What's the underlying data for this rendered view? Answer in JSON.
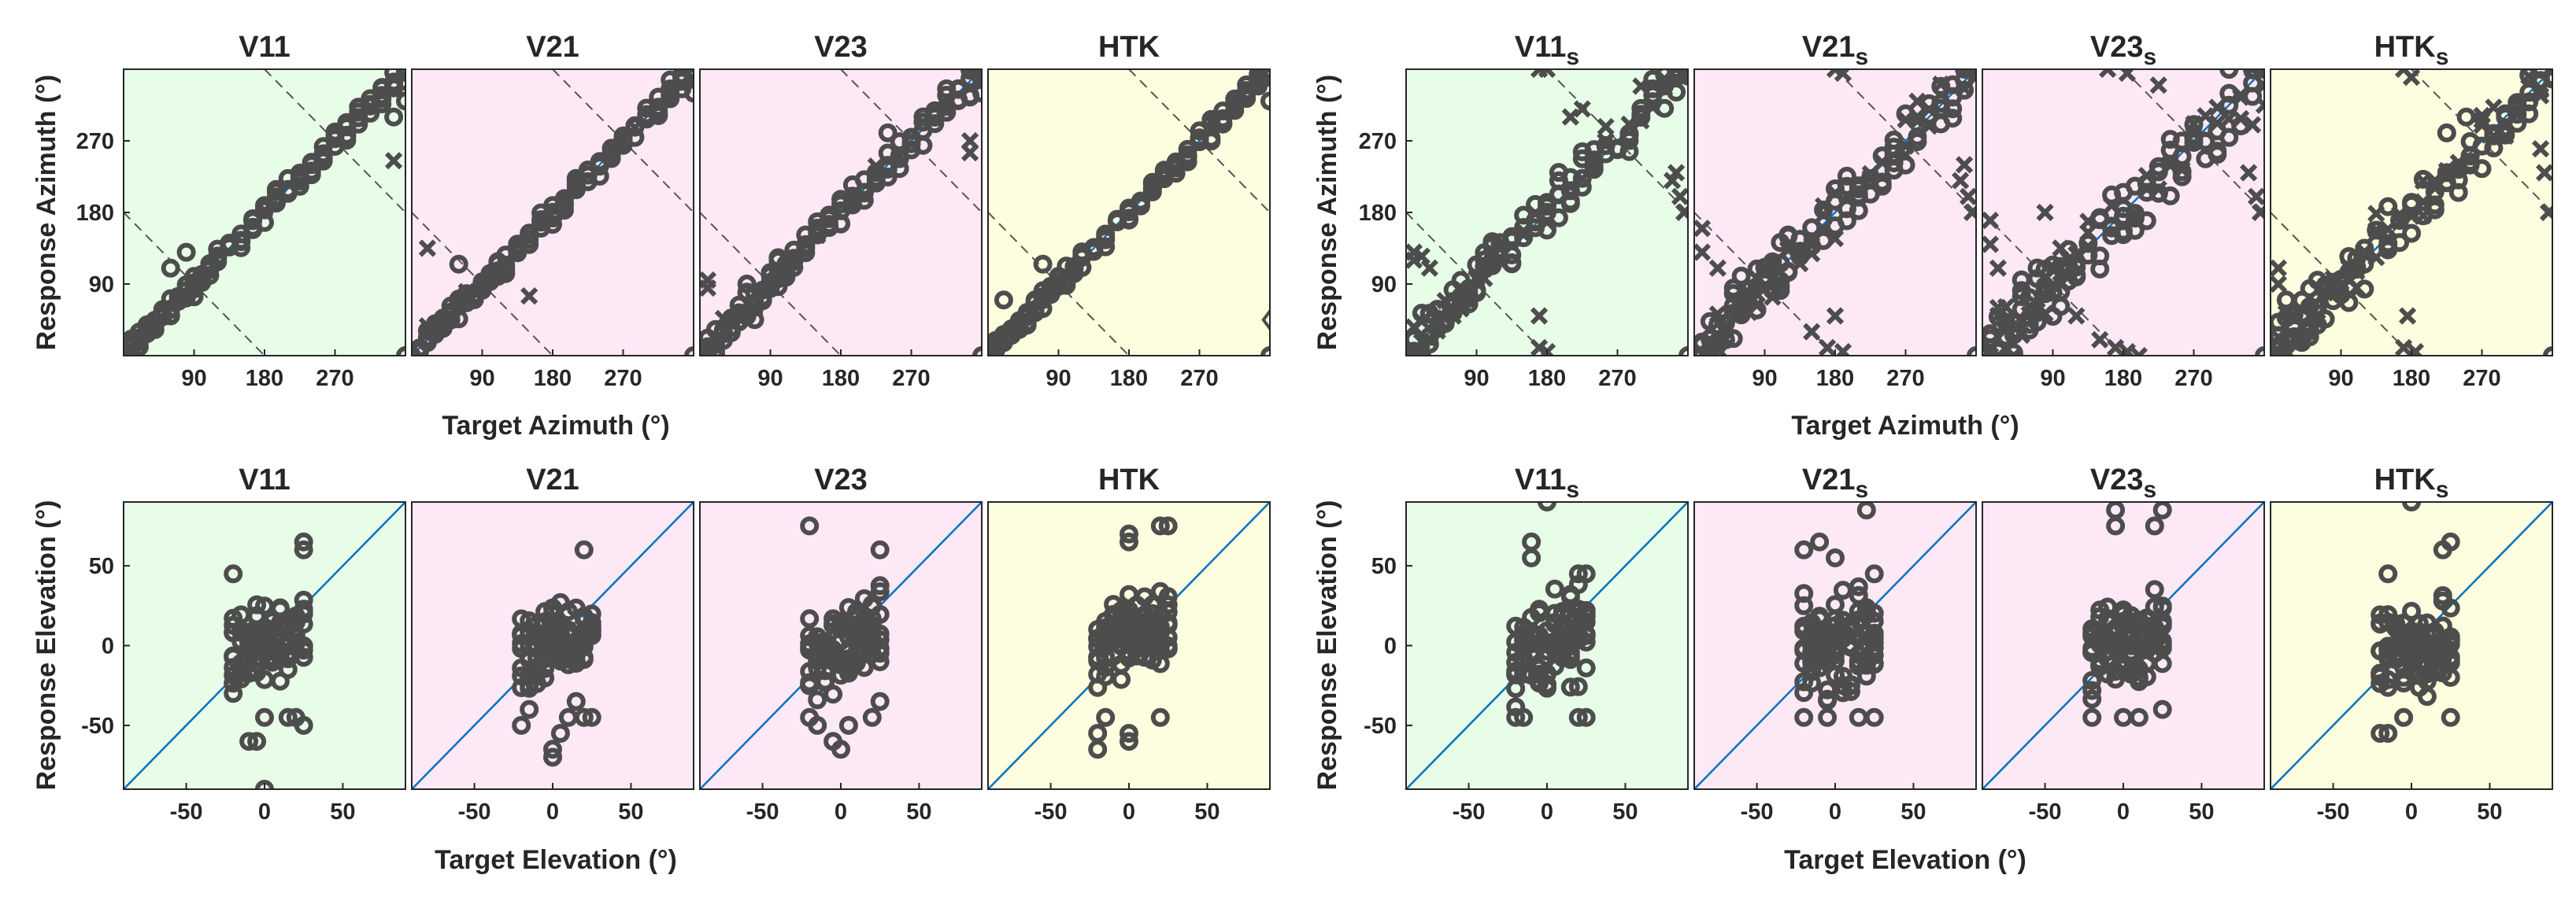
{
  "figure": {
    "panels": [
      {
        "title": "V11",
        "sub": "",
        "bg": "#e8fde8"
      },
      {
        "title": "V21",
        "sub": "",
        "bg": "#fde8f6"
      },
      {
        "title": "V23",
        "sub": "",
        "bg": "#fde8f6"
      },
      {
        "title": "HTK",
        "sub": "",
        "bg": "#fdfde0"
      },
      {
        "title": "V11",
        "sub": "s",
        "bg": "#e8fde8"
      },
      {
        "title": "V21",
        "sub": "s",
        "bg": "#fde8f6"
      },
      {
        "title": "V23",
        "sub": "s",
        "bg": "#fde8f6"
      },
      {
        "title": "HTK",
        "sub": "s",
        "bg": "#fdfde0"
      }
    ],
    "azimuth": {
      "xlabel": "Target Azimuth (°)",
      "ylabel": "Response Azimuth (°)",
      "range": [
        0,
        360
      ],
      "ticks": [
        90,
        180,
        270
      ],
      "tick_labels": [
        "90",
        "180",
        "270"
      ]
    },
    "elevation": {
      "xlabel": "Target Elevation (°)",
      "ylabel": "Response Elevation (°)",
      "range": [
        -90,
        90
      ],
      "ticks": [
        -50,
        0,
        50
      ],
      "tick_labels": [
        "-50",
        "0",
        "50"
      ]
    },
    "colors": {
      "marker": "#4d4d4d",
      "diagonal": "#0072bd",
      "wrap_lines": "#555555",
      "frame": "#262626"
    },
    "markers": {
      "circle": "o",
      "cross": "x",
      "diamond": "◇"
    }
  },
  "chart_data": [
    {
      "type": "scatter",
      "title": "V11",
      "kind": "azimuth",
      "xlabel": "Target Azimuth (°)",
      "ylabel": "Response Azimuth (°)",
      "xlim": [
        0,
        360
      ],
      "ylim": [
        0,
        360
      ],
      "targets": [
        10,
        20,
        30,
        40,
        50,
        60,
        70,
        80,
        90,
        100,
        110,
        120,
        135,
        150,
        165,
        180,
        195,
        210,
        225,
        240,
        255,
        270,
        285,
        300,
        315,
        330,
        345,
        360
      ],
      "spread": 10,
      "cross_rate": 0.02,
      "diamonds": [],
      "zeros": [
        360
      ],
      "extras": [
        [
          360,
          345
        ],
        [
          360,
          320
        ],
        [
          345,
          245
        ],
        [
          345,
          300
        ],
        [
          80,
          130
        ],
        [
          60,
          110
        ]
      ]
    },
    {
      "type": "scatter",
      "title": "V21",
      "kind": "azimuth",
      "xlabel": "Target Azimuth (°)",
      "ylabel": "Response Azimuth (°)",
      "xlim": [
        0,
        360
      ],
      "ylim": [
        0,
        360
      ],
      "targets": [
        10,
        20,
        30,
        40,
        50,
        60,
        70,
        80,
        90,
        100,
        110,
        120,
        135,
        150,
        165,
        180,
        195,
        210,
        225,
        240,
        255,
        270,
        285,
        300,
        315,
        330,
        345,
        360
      ],
      "spread": 9,
      "cross_rate": 0.02,
      "diamonds": [],
      "zeros": [
        360
      ],
      "extras": [
        [
          360,
          350
        ],
        [
          360,
          330
        ],
        [
          150,
          75
        ],
        [
          60,
          115
        ],
        [
          20,
          135
        ]
      ]
    },
    {
      "type": "scatter",
      "title": "V23",
      "kind": "azimuth",
      "xlabel": "Target Azimuth (°)",
      "ylabel": "Response Azimuth (°)",
      "xlim": [
        0,
        360
      ],
      "ylim": [
        0,
        360
      ],
      "targets": [
        10,
        20,
        30,
        40,
        50,
        60,
        70,
        80,
        90,
        100,
        110,
        120,
        135,
        150,
        165,
        180,
        195,
        210,
        225,
        240,
        255,
        270,
        285,
        300,
        315,
        330,
        345,
        360
      ],
      "spread": 14,
      "cross_rate": 0.03,
      "diamonds": [],
      "zeros": [
        360
      ],
      "extras": [
        [
          360,
          350
        ],
        [
          360,
          330
        ],
        [
          10,
          95
        ],
        [
          10,
          85
        ],
        [
          345,
          255
        ],
        [
          345,
          270
        ],
        [
          240,
          280
        ],
        [
          60,
          90
        ]
      ]
    },
    {
      "type": "scatter",
      "title": "HTK",
      "kind": "azimuth",
      "xlabel": "Target Azimuth (°)",
      "ylabel": "Response Azimuth (°)",
      "xlim": [
        0,
        360
      ],
      "ylim": [
        0,
        360
      ],
      "targets": [
        10,
        20,
        30,
        40,
        50,
        60,
        70,
        80,
        90,
        100,
        110,
        120,
        135,
        150,
        165,
        180,
        195,
        210,
        225,
        240,
        255,
        270,
        285,
        300,
        315,
        330,
        345,
        360
      ],
      "spread": 9,
      "cross_rate": 0.02,
      "diamonds": [
        [
          360,
          45
        ]
      ],
      "zeros": [
        360
      ],
      "extras": [
        [
          360,
          350
        ],
        [
          360,
          320
        ],
        [
          20,
          70
        ],
        [
          70,
          115
        ]
      ]
    },
    {
      "type": "scatter",
      "title": "V11s",
      "kind": "azimuth",
      "xlabel": "Target Azimuth (°)",
      "ylabel": "Response Azimuth (°)",
      "xlim": [
        0,
        360
      ],
      "ylim": [
        0,
        360
      ],
      "targets": [
        10,
        20,
        30,
        40,
        50,
        60,
        70,
        80,
        90,
        100,
        110,
        120,
        135,
        150,
        165,
        180,
        195,
        210,
        225,
        240,
        255,
        270,
        285,
        300,
        315,
        330,
        345,
        360
      ],
      "spread": 22,
      "cross_rate": 0.25,
      "diamonds": [],
      "zeros": [
        360
      ],
      "extras": [
        [
          170,
          360
        ],
        [
          180,
          360
        ],
        [
          170,
          10
        ],
        [
          180,
          5
        ],
        [
          170,
          50
        ],
        [
          355,
          180
        ],
        [
          350,
          200
        ],
        [
          340,
          220
        ],
        [
          345,
          230
        ],
        [
          10,
          130
        ],
        [
          20,
          125
        ],
        [
          30,
          110
        ],
        [
          210,
          300
        ],
        [
          225,
          310
        ],
        [
          10,
          120
        ]
      ]
    },
    {
      "type": "scatter",
      "title": "V21s",
      "kind": "azimuth",
      "xlabel": "Target Azimuth (°)",
      "ylabel": "Response Azimuth (°)",
      "xlim": [
        0,
        360
      ],
      "ylim": [
        0,
        360
      ],
      "targets": [
        10,
        20,
        30,
        40,
        50,
        60,
        70,
        80,
        90,
        100,
        110,
        120,
        135,
        150,
        165,
        180,
        195,
        210,
        225,
        240,
        255,
        270,
        285,
        300,
        315,
        330,
        345,
        360
      ],
      "spread": 24,
      "cross_rate": 0.3,
      "diamonds": [],
      "zeros": [
        360
      ],
      "extras": [
        [
          180,
          360
        ],
        [
          190,
          355
        ],
        [
          170,
          10
        ],
        [
          190,
          5
        ],
        [
          180,
          50
        ],
        [
          150,
          30
        ],
        [
          355,
          180
        ],
        [
          350,
          200
        ],
        [
          340,
          220
        ],
        [
          345,
          240
        ],
        [
          10,
          160
        ],
        [
          10,
          130
        ],
        [
          30,
          110
        ],
        [
          60,
          100
        ],
        [
          120,
          150
        ]
      ]
    },
    {
      "type": "scatter",
      "title": "V23s",
      "kind": "azimuth",
      "xlabel": "Target Azimuth (°)",
      "ylabel": "Response Azimuth (°)",
      "xlim": [
        0,
        360
      ],
      "ylim": [
        0,
        360
      ],
      "targets": [
        10,
        20,
        30,
        40,
        50,
        60,
        70,
        80,
        90,
        100,
        110,
        120,
        135,
        150,
        165,
        180,
        195,
        210,
        225,
        240,
        255,
        270,
        285,
        300,
        315,
        330,
        345,
        360
      ],
      "spread": 32,
      "cross_rate": 0.35,
      "diamonds": [],
      "zeros": [
        360
      ],
      "extras": [
        [
          160,
          360
        ],
        [
          185,
          355
        ],
        [
          170,
          10
        ],
        [
          185,
          5
        ],
        [
          150,
          20
        ],
        [
          200,
          0
        ],
        [
          355,
          180
        ],
        [
          350,
          200
        ],
        [
          340,
          230
        ],
        [
          10,
          170
        ],
        [
          10,
          140
        ],
        [
          20,
          110
        ],
        [
          80,
          180
        ],
        [
          120,
          50
        ],
        [
          225,
          340
        ]
      ]
    },
    {
      "type": "scatter",
      "title": "HTKs",
      "kind": "azimuth",
      "xlabel": "Target Azimuth (°)",
      "ylabel": "Response Azimuth (°)",
      "xlim": [
        0,
        360
      ],
      "ylim": [
        0,
        360
      ],
      "targets": [
        10,
        20,
        30,
        40,
        50,
        60,
        70,
        80,
        90,
        100,
        110,
        120,
        135,
        150,
        165,
        180,
        195,
        210,
        225,
        240,
        255,
        270,
        285,
        300,
        315,
        330,
        345,
        360
      ],
      "spread": 25,
      "cross_rate": 0.3,
      "diamonds": [],
      "zeros": [
        360
      ],
      "extras": [
        [
          170,
          360
        ],
        [
          180,
          350
        ],
        [
          170,
          10
        ],
        [
          185,
          5
        ],
        [
          175,
          50
        ],
        [
          355,
          180
        ],
        [
          350,
          230
        ],
        [
          345,
          260
        ],
        [
          10,
          110
        ],
        [
          10,
          90
        ],
        [
          20,
          70
        ],
        [
          60,
          60
        ],
        [
          250,
          300
        ],
        [
          225,
          280
        ]
      ]
    },
    {
      "type": "scatter",
      "title": "V11",
      "kind": "elevation",
      "xlabel": "Target Elevation (°)",
      "ylabel": "Response Elevation (°)",
      "xlim": [
        -90,
        90
      ],
      "ylim": [
        -90,
        90
      ],
      "targets": [
        -20,
        -15,
        -10,
        -5,
        0,
        5,
        10,
        15,
        20,
        25
      ],
      "spread": 18,
      "extras": [
        [
          0,
          -90
        ],
        [
          -10,
          -60
        ],
        [
          -5,
          -60
        ],
        [
          0,
          -45
        ],
        [
          -20,
          -30
        ],
        [
          20,
          -45
        ],
        [
          25,
          -50
        ],
        [
          25,
          60
        ],
        [
          25,
          65
        ],
        [
          -20,
          45
        ],
        [
          15,
          -45
        ]
      ]
    },
    {
      "type": "scatter",
      "title": "V21",
      "kind": "elevation",
      "xlabel": "Target Elevation (°)",
      "ylabel": "Response Elevation (°)",
      "xlim": [
        -90,
        90
      ],
      "ylim": [
        -90,
        90
      ],
      "targets": [
        -20,
        -15,
        -10,
        -5,
        0,
        5,
        10,
        15,
        20,
        25
      ],
      "spread": 17,
      "extras": [
        [
          0,
          -70
        ],
        [
          0,
          -65
        ],
        [
          5,
          -55
        ],
        [
          10,
          -45
        ],
        [
          25,
          -45
        ],
        [
          20,
          -45
        ],
        [
          -20,
          -50
        ],
        [
          20,
          60
        ],
        [
          -15,
          -40
        ],
        [
          15,
          -35
        ]
      ]
    },
    {
      "type": "scatter",
      "title": "V23",
      "kind": "elevation",
      "xlabel": "Target Elevation (°)",
      "ylabel": "Response Elevation (°)",
      "xlim": [
        -90,
        90
      ],
      "ylim": [
        -90,
        90
      ],
      "targets": [
        -20,
        -15,
        -10,
        -5,
        0,
        5,
        10,
        15,
        20,
        25
      ],
      "spread": 18,
      "extras": [
        [
          -20,
          75
        ],
        [
          0,
          -65
        ],
        [
          -5,
          -60
        ],
        [
          -20,
          -45
        ],
        [
          -15,
          -50
        ],
        [
          25,
          60
        ],
        [
          25,
          -35
        ],
        [
          20,
          -45
        ],
        [
          5,
          -50
        ]
      ]
    },
    {
      "type": "scatter",
      "title": "HTK",
      "kind": "elevation",
      "xlabel": "Target Elevation (°)",
      "ylabel": "Response Elevation (°)",
      "xlim": [
        -90,
        90
      ],
      "ylim": [
        -90,
        90
      ],
      "targets": [
        -20,
        -15,
        -10,
        -5,
        0,
        5,
        10,
        15,
        20,
        25
      ],
      "spread": 18,
      "bias": 8,
      "extras": [
        [
          -20,
          -65
        ],
        [
          -20,
          -55
        ],
        [
          0,
          -55
        ],
        [
          0,
          -60
        ],
        [
          20,
          -45
        ],
        [
          20,
          75
        ],
        [
          25,
          75
        ],
        [
          0,
          65
        ],
        [
          0,
          70
        ],
        [
          -15,
          -45
        ]
      ]
    },
    {
      "type": "scatter",
      "title": "V11s",
      "kind": "elevation",
      "xlabel": "Target Elevation (°)",
      "ylabel": "Response Elevation (°)",
      "xlim": [
        -90,
        90
      ],
      "ylim": [
        -90,
        90
      ],
      "targets": [
        -20,
        -15,
        -10,
        -5,
        0,
        5,
        10,
        15,
        20,
        25
      ],
      "spread": 20,
      "extras": [
        [
          0,
          90
        ],
        [
          -10,
          65
        ],
        [
          -20,
          -45
        ],
        [
          -15,
          -45
        ],
        [
          25,
          -45
        ],
        [
          20,
          -45
        ],
        [
          -10,
          55
        ],
        [
          20,
          45
        ],
        [
          25,
          45
        ]
      ]
    },
    {
      "type": "scatter",
      "title": "V21s",
      "kind": "elevation",
      "xlabel": "Target Elevation (°)",
      "ylabel": "Response Elevation (°)",
      "xlim": [
        -90,
        90
      ],
      "ylim": [
        -90,
        90
      ],
      "targets": [
        -20,
        -15,
        -10,
        -5,
        0,
        5,
        10,
        15,
        20,
        25
      ],
      "spread": 20,
      "extras": [
        [
          20,
          85
        ],
        [
          -20,
          60
        ],
        [
          -10,
          65
        ],
        [
          -20,
          -45
        ],
        [
          -5,
          -45
        ],
        [
          25,
          -45
        ],
        [
          15,
          -45
        ],
        [
          0,
          55
        ],
        [
          25,
          45
        ]
      ]
    },
    {
      "type": "scatter",
      "title": "V23s",
      "kind": "elevation",
      "xlabel": "Target Elevation (°)",
      "ylabel": "Response Elevation (°)",
      "xlim": [
        -90,
        90
      ],
      "ylim": [
        -90,
        90
      ],
      "targets": [
        -20,
        -15,
        -10,
        -5,
        0,
        5,
        10,
        15,
        20,
        25
      ],
      "spread": 19,
      "extras": [
        [
          -5,
          85
        ],
        [
          25,
          85
        ],
        [
          -5,
          75
        ],
        [
          20,
          75
        ],
        [
          -20,
          -45
        ],
        [
          0,
          -45
        ],
        [
          10,
          -45
        ],
        [
          25,
          -40
        ]
      ]
    },
    {
      "type": "scatter",
      "title": "HTKs",
      "kind": "elevation",
      "xlabel": "Target Elevation (°)",
      "ylabel": "Response Elevation (°)",
      "xlim": [
        -90,
        90
      ],
      "ylim": [
        -90,
        90
      ],
      "targets": [
        -20,
        -15,
        -10,
        -5,
        0,
        5,
        10,
        15,
        20,
        25
      ],
      "spread": 19,
      "extras": [
        [
          0,
          90
        ],
        [
          -20,
          -55
        ],
        [
          -15,
          -55
        ],
        [
          -5,
          -45
        ],
        [
          25,
          -45
        ],
        [
          25,
          65
        ],
        [
          20,
          60
        ],
        [
          -15,
          45
        ]
      ]
    }
  ]
}
